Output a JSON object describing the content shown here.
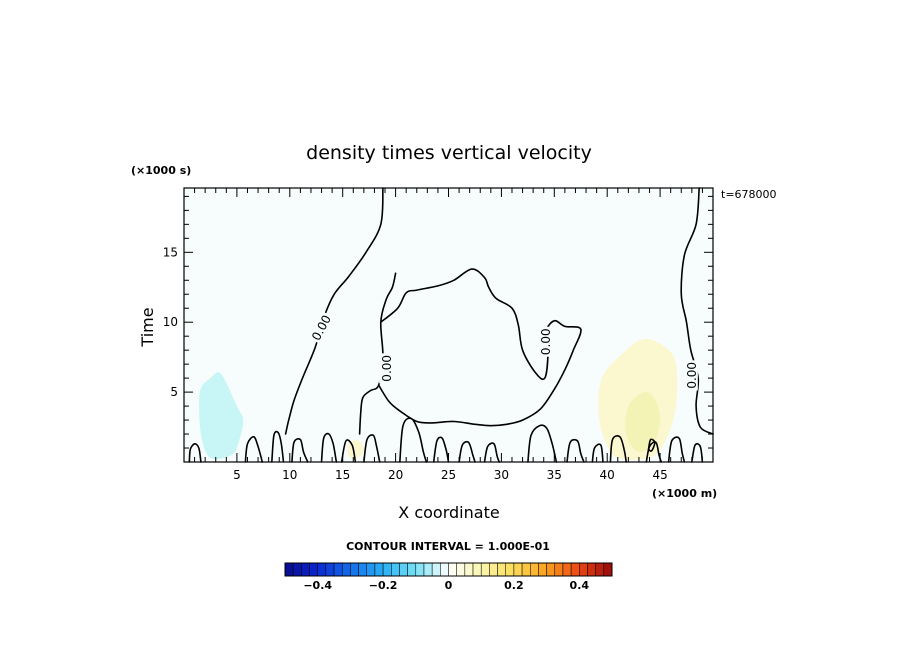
{
  "chart_data": {
    "type": "heatmap",
    "title": "density times vertical velocity",
    "xlabel": "X coordinate",
    "ylabel": "Time",
    "x_unit": "(×1000 m)",
    "y_unit": "(×1000 s)",
    "time_label": "t=678000",
    "xlim": [
      0,
      50
    ],
    "ylim": [
      0,
      19.6
    ],
    "x_ticks": [
      5,
      10,
      15,
      20,
      25,
      30,
      35,
      40,
      45
    ],
    "y_ticks": [
      5,
      10,
      15
    ],
    "contour_interval_text": "CONTOUR INTERVAL = 1.000E-01",
    "contour_labels": [
      {
        "text": "0.00",
        "x": 13.0,
        "y": 9.6,
        "angle": -62
      },
      {
        "text": "0.00",
        "x": 19.2,
        "y": 6.7,
        "angle": -90
      },
      {
        "text": "0.00",
        "x": 34.2,
        "y": 8.6,
        "angle": -90
      },
      {
        "text": "0.00",
        "x": 48.0,
        "y": 6.2,
        "angle": -90
      }
    ],
    "shaded_regions": [
      {
        "color": "#c8f6f6",
        "level": -0.05,
        "points": [
          [
            1.5,
            5
          ],
          [
            2.5,
            6
          ],
          [
            3.5,
            6.3
          ],
          [
            5,
            4
          ],
          [
            5.6,
            3
          ],
          [
            5.2,
            1.5
          ],
          [
            4.5,
            0.5
          ],
          [
            2.5,
            0.3
          ],
          [
            1.6,
            2
          ]
        ]
      },
      {
        "color": "#fbf7cf",
        "level": 0.05,
        "points": [
          [
            39.5,
            6
          ],
          [
            41.5,
            7.8
          ],
          [
            43.5,
            8.8
          ],
          [
            45.5,
            8.2
          ],
          [
            46.5,
            7
          ],
          [
            46.5,
            4
          ],
          [
            45.5,
            1.5
          ],
          [
            44,
            0.3
          ],
          [
            41,
            0.3
          ],
          [
            39.8,
            1.5
          ],
          [
            39.2,
            3.5
          ]
        ]
      },
      {
        "color": "#f4f3b6",
        "level": 0.1,
        "points": [
          [
            42,
            4
          ],
          [
            43.5,
            5
          ],
          [
            44.5,
            4.5
          ],
          [
            45,
            3
          ],
          [
            44.3,
            1.2
          ],
          [
            42.8,
            0.8
          ],
          [
            41.8,
            2
          ]
        ]
      },
      {
        "color": "#fbf7cf",
        "level": 0.05,
        "points": [
          [
            15.5,
            1.2
          ],
          [
            16.3,
            1.6
          ],
          [
            17,
            1.0
          ],
          [
            16.5,
            0.3
          ],
          [
            15.6,
            0.4
          ]
        ]
      }
    ],
    "contours": [
      [
        [
          18.8,
          19.6
        ],
        [
          18.6,
          17
        ],
        [
          17.2,
          15
        ],
        [
          15.6,
          13.3
        ],
        [
          14.2,
          12
        ],
        [
          13.2,
          10.3
        ],
        [
          12.4,
          8.2
        ],
        [
          11.2,
          6
        ],
        [
          10.4,
          4.4
        ],
        [
          9.9,
          3
        ],
        [
          9.6,
          2
        ]
      ],
      [
        [
          20,
          13.5
        ],
        [
          19.7,
          12.5
        ],
        [
          19.1,
          11.6
        ],
        [
          18.6,
          10
        ],
        [
          18.8,
          7.5
        ],
        [
          18.4,
          5.5
        ],
        [
          17.6,
          5.1
        ],
        [
          16.9,
          4.6
        ],
        [
          16.7,
          3.5
        ],
        [
          16.6,
          2
        ]
      ],
      [
        [
          18.6,
          10
        ],
        [
          20.2,
          11
        ],
        [
          21,
          12.1
        ],
        [
          22,
          12.3
        ],
        [
          24,
          12.6
        ],
        [
          25.5,
          13
        ],
        [
          27.2,
          13.8
        ],
        [
          28.4,
          13.2
        ],
        [
          28.8,
          12.5
        ],
        [
          29.5,
          11.7
        ],
        [
          31,
          11
        ],
        [
          31.6,
          9.8
        ],
        [
          32,
          8
        ],
        [
          33.2,
          6.4
        ],
        [
          34.1,
          6
        ],
        [
          34.4,
          7.8
        ],
        [
          34.2,
          9.3
        ],
        [
          35,
          10.1
        ],
        [
          36,
          9.7
        ],
        [
          37.5,
          9.5
        ],
        [
          36.8,
          8
        ],
        [
          36,
          6.6
        ],
        [
          35,
          5.2
        ],
        [
          33.7,
          3.8
        ],
        [
          32,
          3
        ],
        [
          30.5,
          2.7
        ],
        [
          29,
          2.6
        ],
        [
          27.5,
          2.7
        ],
        [
          25.5,
          2.9
        ],
        [
          23.5,
          2.8
        ],
        [
          22,
          2.9
        ],
        [
          20.5,
          3.6
        ],
        [
          19.4,
          4.3
        ],
        [
          18.4,
          5.5
        ]
      ],
      [
        [
          48.7,
          19.6
        ],
        [
          48.4,
          17
        ],
        [
          47.3,
          14.8
        ],
        [
          47,
          12
        ],
        [
          47.5,
          10
        ],
        [
          47.9,
          8
        ],
        [
          48.6,
          6
        ],
        [
          48.4,
          4
        ],
        [
          48.8,
          2.5
        ],
        [
          50,
          2
        ]
      ],
      [
        [
          0.5,
          0
        ],
        [
          0.6,
          0.9
        ],
        [
          1,
          1.3
        ],
        [
          1.4,
          1
        ],
        [
          1.6,
          0
        ]
      ],
      [
        [
          5.8,
          0
        ],
        [
          6,
          1.3
        ],
        [
          6.6,
          1.8
        ],
        [
          7,
          1.1
        ],
        [
          7.4,
          0
        ]
      ],
      [
        [
          8.3,
          0
        ],
        [
          8.5,
          1.9
        ],
        [
          8.9,
          2.1
        ],
        [
          9.2,
          1.3
        ],
        [
          9.4,
          0
        ]
      ],
      [
        [
          10.2,
          0
        ],
        [
          10.4,
          1.4
        ],
        [
          11,
          1.6
        ],
        [
          11.3,
          0.7
        ],
        [
          11.7,
          0
        ]
      ],
      [
        [
          13,
          0
        ],
        [
          13.2,
          1.7
        ],
        [
          13.7,
          2
        ],
        [
          14.1,
          1.3
        ],
        [
          14.4,
          0
        ]
      ],
      [
        [
          14.9,
          0
        ],
        [
          15.3,
          1.5
        ],
        [
          15.9,
          1.2
        ],
        [
          16.2,
          0
        ]
      ],
      [
        [
          17,
          0
        ],
        [
          17.3,
          1.6
        ],
        [
          17.9,
          1.9
        ],
        [
          18.2,
          1.1
        ],
        [
          18.5,
          0
        ]
      ],
      [
        [
          20.4,
          0
        ],
        [
          20.7,
          2.6
        ],
        [
          21.5,
          3.1
        ],
        [
          22.2,
          2.1
        ],
        [
          22.6,
          0.8
        ],
        [
          22.9,
          0
        ]
      ],
      [
        [
          23.6,
          0
        ],
        [
          23.9,
          1.5
        ],
        [
          24.4,
          1.7
        ],
        [
          24.8,
          0.8
        ],
        [
          25,
          0
        ]
      ],
      [
        [
          26,
          0
        ],
        [
          26.3,
          1.2
        ],
        [
          26.9,
          1.4
        ],
        [
          27.3,
          0.5
        ],
        [
          27.5,
          0
        ]
      ],
      [
        [
          28.4,
          0
        ],
        [
          28.7,
          1.1
        ],
        [
          29.3,
          1.3
        ],
        [
          29.6,
          0.4
        ],
        [
          29.8,
          0
        ]
      ],
      [
        [
          32.5,
          0
        ],
        [
          32.8,
          1.9
        ],
        [
          33.6,
          2.6
        ],
        [
          34.3,
          2.4
        ],
        [
          34.8,
          1.3
        ],
        [
          35.2,
          0
        ]
      ],
      [
        [
          36.2,
          0
        ],
        [
          36.5,
          1.4
        ],
        [
          37.2,
          1.5
        ],
        [
          37.5,
          0.6
        ],
        [
          37.8,
          0
        ]
      ],
      [
        [
          38.6,
          0
        ],
        [
          38.8,
          1
        ],
        [
          39.4,
          1.2
        ],
        [
          39.6,
          0
        ]
      ],
      [
        [
          40.3,
          0
        ],
        [
          40.5,
          1.6
        ],
        [
          41.2,
          1.8
        ],
        [
          41.6,
          0.9
        ],
        [
          41.8,
          0
        ]
      ],
      [
        [
          43.7,
          0
        ],
        [
          44,
          1.1
        ],
        [
          44.6,
          1.4
        ],
        [
          44.9,
          0.5
        ],
        [
          45.1,
          0
        ]
      ],
      [
        [
          45.8,
          0
        ],
        [
          46.1,
          1.5
        ],
        [
          46.8,
          1.7
        ],
        [
          47.1,
          0.6
        ],
        [
          47.3,
          0
        ]
      ],
      [
        [
          48,
          0
        ],
        [
          48.3,
          1.2
        ],
        [
          48.8,
          1.1
        ],
        [
          49,
          0
        ]
      ],
      [
        [
          43.9,
          0.9
        ],
        [
          44.1,
          1.6
        ],
        [
          44.5,
          1.4
        ],
        [
          44.2,
          0.8
        ],
        [
          43.9,
          0.9
        ]
      ]
    ],
    "colorbar": {
      "min": -0.5,
      "max": 0.5,
      "step": 0.025,
      "tick_values": [
        -0.4,
        -0.2,
        0,
        0.2,
        0.4
      ],
      "tick_labels": [
        "−0.4",
        "−0.2",
        "0",
        "0.2",
        "0.4"
      ]
    }
  }
}
